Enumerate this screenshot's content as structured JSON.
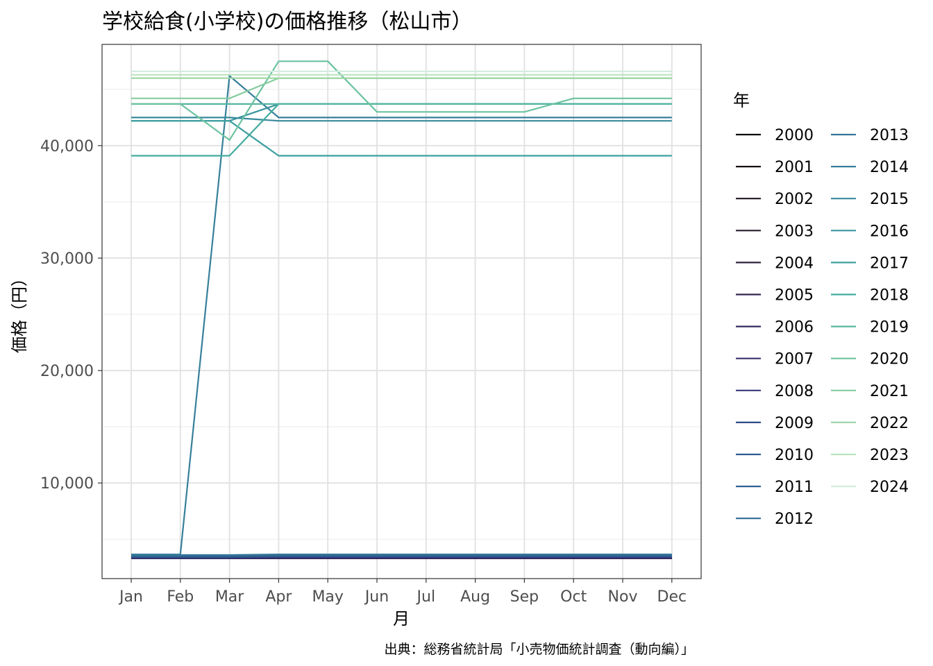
{
  "chart_data": {
    "type": "line",
    "title": "学校給食(小学校)の価格推移（松山市）",
    "xlabel": "月",
    "ylabel": "価格（円）",
    "caption": "出典：総務省統計局「小売物価統計調査（動向編）」",
    "legend_title": "年",
    "legend_position": "right",
    "grid": true,
    "categories": [
      "Jan",
      "Feb",
      "Mar",
      "Apr",
      "May",
      "Jun",
      "Jul",
      "Aug",
      "Sep",
      "Oct",
      "Nov",
      "Dec"
    ],
    "ylim": [
      1500,
      49000
    ],
    "yticks": [
      10000,
      20000,
      30000,
      40000
    ],
    "ytick_labels": [
      "10,000",
      "20,000",
      "30,000",
      "40,000"
    ],
    "series": [
      {
        "name": "2000",
        "color": "#0b0405",
        "values": [
          3300,
          3300,
          3300,
          3300,
          3300,
          3300,
          3300,
          3300,
          3300,
          3300,
          3300,
          3300
        ]
      },
      {
        "name": "2001",
        "color": "#160f12",
        "values": [
          3300,
          3300,
          3300,
          3300,
          3300,
          3300,
          3300,
          3300,
          3300,
          3300,
          3300,
          3300
        ]
      },
      {
        "name": "2002",
        "color": "#1f1520",
        "values": [
          3300,
          3300,
          3300,
          3300,
          3300,
          3300,
          3300,
          3300,
          3300,
          3300,
          3300,
          3300
        ]
      },
      {
        "name": "2003",
        "color": "#261a2c",
        "values": [
          3300,
          3300,
          3300,
          3300,
          3300,
          3300,
          3300,
          3300,
          3300,
          3300,
          3300,
          3300
        ]
      },
      {
        "name": "2004",
        "color": "#2c1e3d",
        "values": [
          3300,
          3300,
          3300,
          3300,
          3300,
          3300,
          3300,
          3300,
          3300,
          3300,
          3300,
          3300
        ]
      },
      {
        "name": "2005",
        "color": "#302350",
        "values": [
          3300,
          3300,
          3300,
          3300,
          3300,
          3300,
          3300,
          3300,
          3300,
          3300,
          3300,
          3300
        ]
      },
      {
        "name": "2006",
        "color": "#33295e",
        "values": [
          3300,
          3300,
          3300,
          3350,
          3350,
          3350,
          3350,
          3350,
          3350,
          3350,
          3350,
          3350
        ]
      },
      {
        "name": "2007",
        "color": "#382f6a",
        "values": [
          3350,
          3350,
          3350,
          3350,
          3350,
          3350,
          3350,
          3350,
          3350,
          3350,
          3350,
          3350
        ]
      },
      {
        "name": "2008",
        "color": "#36397a",
        "values": [
          3350,
          3350,
          3350,
          3400,
          3400,
          3400,
          3400,
          3400,
          3400,
          3400,
          3400,
          3400
        ]
      },
      {
        "name": "2009",
        "color": "#2f4a86",
        "values": [
          3400,
          3400,
          3400,
          3450,
          3450,
          3450,
          3450,
          3450,
          3450,
          3450,
          3450,
          3450
        ]
      },
      {
        "name": "2010",
        "color": "#2e5a8e",
        "values": [
          3450,
          3450,
          3450,
          3500,
          3500,
          3500,
          3500,
          3500,
          3500,
          3500,
          3500,
          3500
        ]
      },
      {
        "name": "2011",
        "color": "#305f91",
        "values": [
          3500,
          3500,
          3500,
          3550,
          3550,
          3550,
          3550,
          3550,
          3550,
          3550,
          3550,
          3550
        ]
      },
      {
        "name": "2012",
        "color": "#316a94",
        "values": [
          3550,
          3550,
          3550,
          3600,
          3600,
          3600,
          3600,
          3600,
          3600,
          3600,
          3600,
          3600
        ]
      },
      {
        "name": "2013",
        "color": "#347597",
        "values": [
          3600,
          3600,
          3600,
          3650,
          3650,
          3650,
          3650,
          3650,
          3650,
          3650,
          3650,
          3650
        ]
      },
      {
        "name": "2014",
        "color": "#367f9a",
        "values": [
          3650,
          3650,
          46200,
          42500,
          42500,
          42500,
          42500,
          42500,
          42500,
          42500,
          42500,
          42500
        ]
      },
      {
        "name": "2015",
        "color": "#37899c",
        "values": [
          42500,
          42500,
          42500,
          42200,
          42200,
          42200,
          42200,
          42200,
          42200,
          42200,
          42200,
          42200
        ]
      },
      {
        "name": "2016",
        "color": "#39949e",
        "values": [
          42200,
          42200,
          42200,
          43700,
          43700,
          43700,
          43700,
          43700,
          43700,
          43700,
          43700,
          43700
        ]
      },
      {
        "name": "2017",
        "color": "#3c9f9f",
        "values": [
          42200,
          42200,
          42200,
          39100,
          39100,
          39100,
          39100,
          39100,
          39100,
          39100,
          39100,
          39100
        ]
      },
      {
        "name": "2018",
        "color": "#42ab9f",
        "values": [
          39100,
          39100,
          39100,
          43700,
          43700,
          43700,
          43700,
          43700,
          43700,
          43700,
          43700,
          43700
        ]
      },
      {
        "name": "2019",
        "color": "#54b69f",
        "values": [
          43700,
          43700,
          43700,
          43700,
          43700,
          43700,
          43700,
          43700,
          43700,
          43700,
          43700,
          43700
        ]
      },
      {
        "name": "2020",
        "color": "#6cc29f",
        "values": [
          43700,
          43700,
          40500,
          47500,
          47500,
          43000,
          43000,
          43000,
          43000,
          44200,
          44200,
          44200
        ]
      },
      {
        "name": "2021",
        "color": "#86cc9f",
        "values": [
          44200,
          44200,
          44200,
          46000,
          46000,
          46000,
          46000,
          46000,
          46000,
          46000,
          46000,
          46000
        ]
      },
      {
        "name": "2022",
        "color": "#a0d6a8",
        "values": [
          46000,
          46000,
          46000,
          46000,
          46000,
          46000,
          46000,
          46000,
          46000,
          46000,
          46000,
          46000
        ]
      },
      {
        "name": "2023",
        "color": "#bae2bd",
        "values": [
          46300,
          46300,
          46300,
          46300,
          46300,
          46300,
          46300,
          46300,
          46300,
          46300,
          46300,
          46300
        ]
      },
      {
        "name": "2024",
        "color": "#d3ede0",
        "values": [
          46600,
          46600,
          46600,
          46600,
          46600,
          46600,
          46600,
          46600,
          46600,
          46600,
          46600,
          46600
        ]
      }
    ]
  }
}
